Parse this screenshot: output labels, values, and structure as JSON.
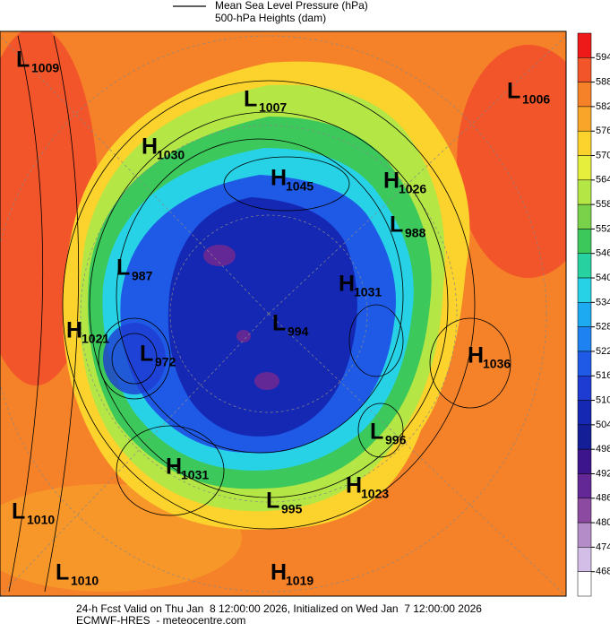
{
  "header": {
    "legend_line_label": "Mean Sea Level Pressure (hPa)",
    "legend_fill_label": "500-hPa Heights (dam)"
  },
  "colorbar": {
    "labels": [
      594,
      588,
      582,
      576,
      570,
      564,
      558,
      552,
      546,
      540,
      534,
      528,
      522,
      516,
      510,
      504,
      498,
      492,
      486,
      480,
      474,
      468
    ],
    "colors": [
      "#ee1a1a",
      "#f2552a",
      "#f58228",
      "#f8a52a",
      "#fcd22c",
      "#e6f03c",
      "#b4e646",
      "#7ad24a",
      "#3cc85a",
      "#28d2a0",
      "#28d2e6",
      "#1eaaf0",
      "#1e82f0",
      "#1e5ae6",
      "#1e3cd2",
      "#1428b4",
      "#141e96",
      "#3c148c",
      "#642896",
      "#8c4ba0",
      "#b48cc8",
      "#d2bee6",
      "#ffffff"
    ]
  },
  "centers": [
    {
      "letter": "L",
      "value": "1009"
    },
    {
      "letter": "L",
      "value": "1007"
    },
    {
      "letter": "L",
      "value": "1006"
    },
    {
      "letter": "H",
      "value": "1030"
    },
    {
      "letter": "H",
      "value": "1045"
    },
    {
      "letter": "H",
      "value": "1026"
    },
    {
      "letter": "L",
      "value": "988"
    },
    {
      "letter": "L",
      "value": "987"
    },
    {
      "letter": "H",
      "value": "1031"
    },
    {
      "letter": "L",
      "value": "994"
    },
    {
      "letter": "H",
      "value": "1021"
    },
    {
      "letter": "L",
      "value": "972"
    },
    {
      "letter": "H",
      "value": "1036"
    },
    {
      "letter": "L",
      "value": "996"
    },
    {
      "letter": "H",
      "value": "1031"
    },
    {
      "letter": "H",
      "value": "1023"
    },
    {
      "letter": "L",
      "value": "995"
    },
    {
      "letter": "L",
      "value": "1010"
    },
    {
      "letter": "L",
      "value": "1010"
    },
    {
      "letter": "H",
      "value": "1019"
    }
  ],
  "footer": {
    "line1": "24-h Fcst Valid on Thu Jan  8 12:00:00 2026, Initialized on Wed Jan  7 12:00:00 2026",
    "line2": "ECMWF-HRES  - meteocentre.com"
  }
}
